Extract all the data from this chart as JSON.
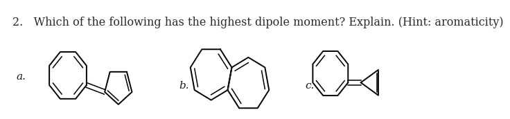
{
  "title_text": "2.   Which of the following has the highest dipole moment? Explain. (Hint: aromaticity)",
  "title_fontsize": 11.5,
  "title_color": "#2a2a2a",
  "bg_color": "#ffffff",
  "label_a": "a.",
  "label_b": "b.",
  "label_c": "c."
}
